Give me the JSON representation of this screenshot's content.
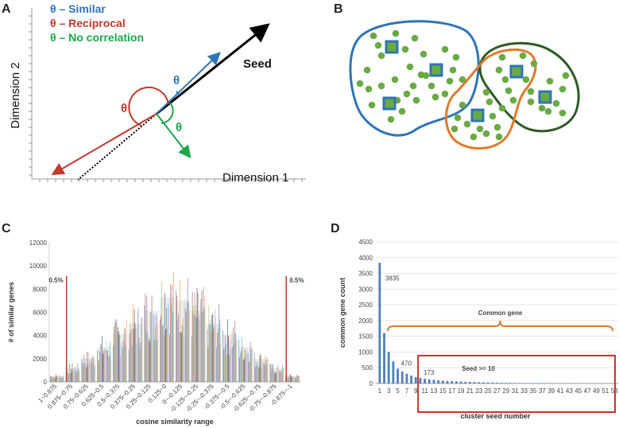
{
  "colors": {
    "blue": "#2e75b6",
    "red": "#c0392b",
    "green": "#1aa84a",
    "orange": "#e07b2a",
    "darkgreen": "#2d5a27",
    "dot": "#6aaa45"
  },
  "panels": {
    "a": {
      "letter": "A",
      "legend": [
        "θ – Similar",
        "θ – Reciprocal",
        "θ – No correlation"
      ],
      "seed_label": "Seed",
      "theta": "θ",
      "xlabel": "Dimension 1",
      "ylabel": "Dimension 2"
    },
    "b": {
      "letter": "B"
    },
    "c": {
      "letter": "C"
    },
    "d": {
      "letter": "D"
    }
  },
  "chart_data": [
    {
      "id": "C",
      "type": "bar",
      "title": "",
      "xlabel": "cosine similarity range",
      "ylabel": "# of similar genes",
      "ylim": [
        0,
        12000
      ],
      "yticks": [
        0,
        2000,
        4000,
        6000,
        8000,
        10000,
        12000
      ],
      "categories": [
        "1~0.875",
        "0.875~0.75",
        "0.75~0.625",
        "0.625~0.5",
        "0.5~0.375",
        "0.375~0.25",
        "0.25~0.125",
        "0.125~0",
        "0~-0.125",
        "-0.125~-0.25",
        "-0.25~-0.375",
        "-0.375~-0.5",
        "-0.5~-0.625",
        "-0.625~-0.75",
        "-0.75~-0.875",
        "-0.875~-1"
      ],
      "values": [
        500,
        1200,
        2000,
        3000,
        4100,
        5000,
        6100,
        7300,
        7000,
        6100,
        5000,
        4100,
        3000,
        2000,
        1200,
        500
      ],
      "annotations": [
        {
          "text": "0.5%",
          "x_category": "0.875~0.75"
        },
        {
          "text": "0.5%",
          "x_category": "-0.875~-1"
        }
      ]
    },
    {
      "id": "D",
      "type": "bar",
      "title": "",
      "xlabel": "cluster seed number",
      "ylabel": "common gene count",
      "ylim": [
        0,
        4500
      ],
      "yticks": [
        0,
        500,
        1000,
        1500,
        2000,
        2500,
        3000,
        3500,
        4000,
        4500
      ],
      "x_ticks": [
        "1",
        "3",
        "5",
        "7",
        "9",
        "11",
        "13",
        "15",
        "17",
        "19",
        "21",
        "23",
        "25",
        "27",
        "29",
        "31",
        "33",
        "35",
        "37",
        "39",
        "41",
        "43",
        "45",
        "47",
        "49",
        "51",
        "53"
      ],
      "x": [
        1,
        2,
        3,
        4,
        5,
        6,
        7,
        8,
        9,
        10,
        11,
        12,
        13,
        14,
        15,
        16,
        17,
        18,
        19,
        20,
        21,
        22,
        23,
        24,
        25,
        26,
        27,
        28,
        29,
        30,
        31,
        32,
        33,
        34,
        35,
        36,
        37,
        38,
        39,
        40,
        41,
        42,
        43,
        44,
        45,
        46,
        47,
        48,
        49,
        50,
        51,
        52,
        53
      ],
      "values": [
        3835,
        1600,
        1000,
        700,
        470,
        380,
        310,
        250,
        200,
        173,
        150,
        130,
        115,
        100,
        90,
        80,
        72,
        65,
        58,
        52,
        47,
        42,
        38,
        34,
        31,
        28,
        25,
        22,
        20,
        18,
        16,
        14,
        13,
        12,
        11,
        10,
        9,
        8,
        8,
        7,
        7,
        6,
        6,
        5,
        5,
        5,
        4,
        4,
        4,
        3,
        3,
        3,
        3
      ],
      "data_labels": [
        {
          "x": 1,
          "text": "3835"
        },
        {
          "x": 5,
          "text": "470"
        },
        {
          "x": 10,
          "text": "173"
        }
      ],
      "annotations": [
        {
          "text": "Common gene"
        },
        {
          "text": "Seed >= 10"
        }
      ]
    }
  ]
}
